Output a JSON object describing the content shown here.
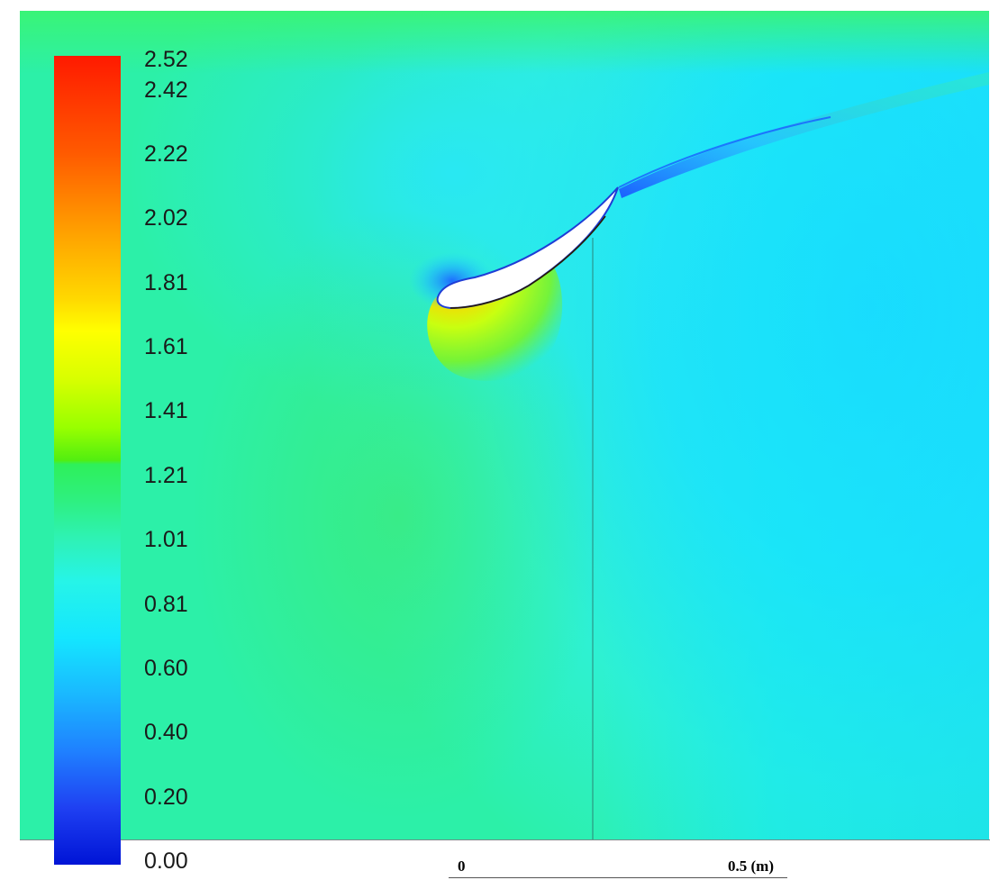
{
  "colorbar": {
    "ticks": [
      "2.52",
      "2.42",
      "2.22",
      "2.02",
      "1.81",
      "1.61",
      "1.41",
      "1.21",
      "1.01",
      "0.81",
      "0.60",
      "0.40",
      "0.20",
      "0.00"
    ],
    "min": 0.0,
    "max": 2.52,
    "colormap": [
      "#0014d6",
      "#1f80ff",
      "#14e6ff",
      "#2ef2b8",
      "#2ef05a",
      "#98ff00",
      "#ffff00",
      "#ffa200",
      "#ff1a00"
    ]
  },
  "scale_bar": {
    "start_label": "0",
    "end_label": "0.5 (m)"
  },
  "colors": {
    "background_field": "#2cf0a8",
    "airfoil": "#ffffff"
  }
}
